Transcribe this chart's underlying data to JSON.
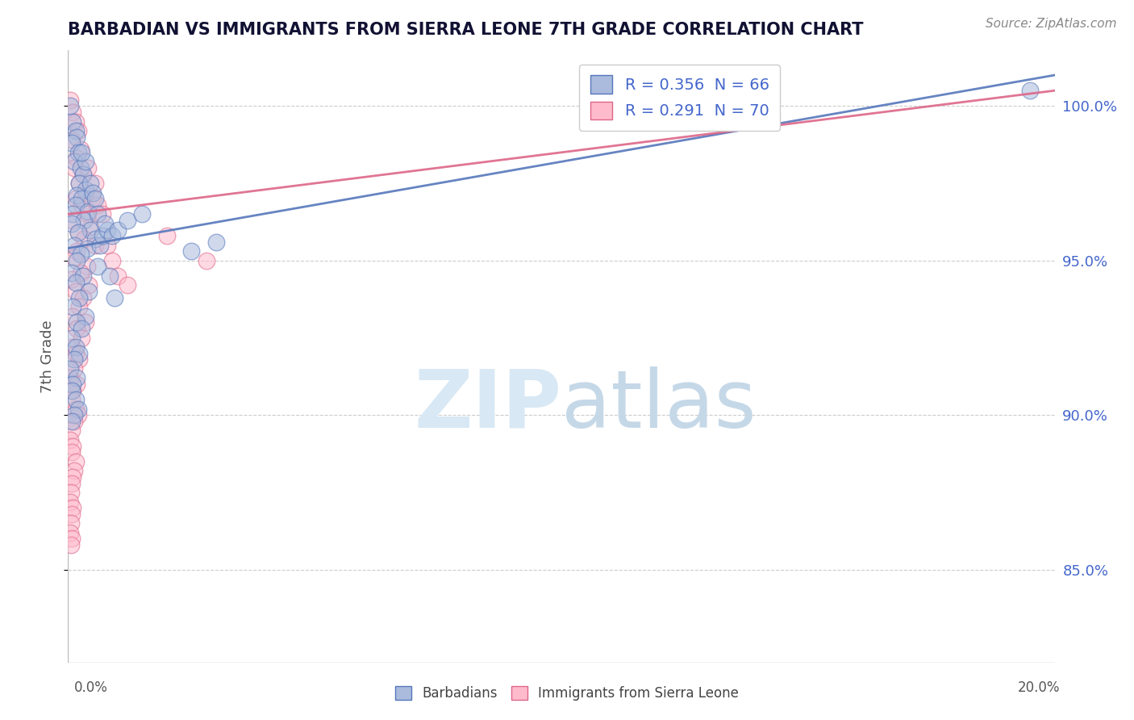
{
  "title": "BARBADIAN VS IMMIGRANTS FROM SIERRA LEONE 7TH GRADE CORRELATION CHART",
  "source": "Source: ZipAtlas.com",
  "ylabel": "7th Grade",
  "xlim": [
    0.0,
    20.0
  ],
  "ylim": [
    82.0,
    101.8
  ],
  "yticks": [
    85.0,
    90.0,
    95.0,
    100.0
  ],
  "ytick_labels": [
    "85.0%",
    "90.0%",
    "95.0%",
    "100.0%"
  ],
  "blue_scatter": [
    [
      0.05,
      100.0
    ],
    [
      0.1,
      99.5
    ],
    [
      0.15,
      99.2
    ],
    [
      0.18,
      99.0
    ],
    [
      0.08,
      98.8
    ],
    [
      0.2,
      98.5
    ],
    [
      0.12,
      98.2
    ],
    [
      0.25,
      98.0
    ],
    [
      0.3,
      97.8
    ],
    [
      0.22,
      97.5
    ],
    [
      0.35,
      97.3
    ],
    [
      0.18,
      97.1
    ],
    [
      0.28,
      97.0
    ],
    [
      0.15,
      96.8
    ],
    [
      0.4,
      96.6
    ],
    [
      0.1,
      96.5
    ],
    [
      0.32,
      96.3
    ],
    [
      0.08,
      96.2
    ],
    [
      0.45,
      96.0
    ],
    [
      0.2,
      95.9
    ],
    [
      0.55,
      95.7
    ],
    [
      0.12,
      95.5
    ],
    [
      0.38,
      95.4
    ],
    [
      0.25,
      95.2
    ],
    [
      0.18,
      95.0
    ],
    [
      0.6,
      94.8
    ],
    [
      0.08,
      94.6
    ],
    [
      0.3,
      94.5
    ],
    [
      0.15,
      94.3
    ],
    [
      0.42,
      94.0
    ],
    [
      0.22,
      93.8
    ],
    [
      0.1,
      93.5
    ],
    [
      0.35,
      93.2
    ],
    [
      0.18,
      93.0
    ],
    [
      0.28,
      92.8
    ],
    [
      0.08,
      92.5
    ],
    [
      0.15,
      92.2
    ],
    [
      0.22,
      92.0
    ],
    [
      0.12,
      91.8
    ],
    [
      0.05,
      91.5
    ],
    [
      0.18,
      91.2
    ],
    [
      0.1,
      91.0
    ],
    [
      0.08,
      90.8
    ],
    [
      0.15,
      90.5
    ],
    [
      0.2,
      90.2
    ],
    [
      0.12,
      90.0
    ],
    [
      0.08,
      89.8
    ],
    [
      0.65,
      95.5
    ],
    [
      0.7,
      95.8
    ],
    [
      0.8,
      96.0
    ],
    [
      2.5,
      95.3
    ],
    [
      3.0,
      95.6
    ],
    [
      19.5,
      100.5
    ],
    [
      0.45,
      97.5
    ],
    [
      0.5,
      97.2
    ],
    [
      0.55,
      97.0
    ],
    [
      0.35,
      98.2
    ],
    [
      0.28,
      98.5
    ],
    [
      0.6,
      96.5
    ],
    [
      0.75,
      96.2
    ],
    [
      0.9,
      95.8
    ],
    [
      1.0,
      96.0
    ],
    [
      1.2,
      96.3
    ],
    [
      1.5,
      96.5
    ],
    [
      0.85,
      94.5
    ],
    [
      0.95,
      93.8
    ]
  ],
  "pink_scatter": [
    [
      0.05,
      100.2
    ],
    [
      0.1,
      99.8
    ],
    [
      0.15,
      99.5
    ],
    [
      0.2,
      99.2
    ],
    [
      0.08,
      98.9
    ],
    [
      0.25,
      98.6
    ],
    [
      0.18,
      98.3
    ],
    [
      0.12,
      98.0
    ],
    [
      0.3,
      97.8
    ],
    [
      0.22,
      97.5
    ],
    [
      0.35,
      97.2
    ],
    [
      0.15,
      97.0
    ],
    [
      0.28,
      96.8
    ],
    [
      0.4,
      96.5
    ],
    [
      0.1,
      96.3
    ],
    [
      0.45,
      96.1
    ],
    [
      0.2,
      95.9
    ],
    [
      0.32,
      95.7
    ],
    [
      0.55,
      95.5
    ],
    [
      0.18,
      95.3
    ],
    [
      0.12,
      95.1
    ],
    [
      0.38,
      94.8
    ],
    [
      0.25,
      94.6
    ],
    [
      0.08,
      94.4
    ],
    [
      0.42,
      94.2
    ],
    [
      0.15,
      94.0
    ],
    [
      0.3,
      93.8
    ],
    [
      0.22,
      93.5
    ],
    [
      0.1,
      93.2
    ],
    [
      0.35,
      93.0
    ],
    [
      0.18,
      92.8
    ],
    [
      0.28,
      92.5
    ],
    [
      0.08,
      92.2
    ],
    [
      0.15,
      92.0
    ],
    [
      0.22,
      91.8
    ],
    [
      0.12,
      91.5
    ],
    [
      0.05,
      91.2
    ],
    [
      0.18,
      91.0
    ],
    [
      0.1,
      90.8
    ],
    [
      0.08,
      90.5
    ],
    [
      0.15,
      90.2
    ],
    [
      0.2,
      90.0
    ],
    [
      0.12,
      89.8
    ],
    [
      0.08,
      89.5
    ],
    [
      0.05,
      89.2
    ],
    [
      0.1,
      89.0
    ],
    [
      0.08,
      88.8
    ],
    [
      0.15,
      88.5
    ],
    [
      0.12,
      88.2
    ],
    [
      0.1,
      88.0
    ],
    [
      0.08,
      87.8
    ],
    [
      0.06,
      87.5
    ],
    [
      0.05,
      87.2
    ],
    [
      0.1,
      87.0
    ],
    [
      0.08,
      86.8
    ],
    [
      0.06,
      86.5
    ],
    [
      0.05,
      86.2
    ],
    [
      0.08,
      86.0
    ],
    [
      0.06,
      85.8
    ],
    [
      0.5,
      97.0
    ],
    [
      0.6,
      96.8
    ],
    [
      0.7,
      96.5
    ],
    [
      2.0,
      95.8
    ],
    [
      2.8,
      95.0
    ],
    [
      0.4,
      98.0
    ],
    [
      0.55,
      97.5
    ],
    [
      0.8,
      95.5
    ],
    [
      0.9,
      95.0
    ],
    [
      1.0,
      94.5
    ],
    [
      1.2,
      94.2
    ]
  ],
  "blue_line": [
    [
      0.0,
      95.4
    ],
    [
      20.0,
      101.0
    ]
  ],
  "pink_line": [
    [
      0.0,
      96.5
    ],
    [
      20.0,
      100.5
    ]
  ],
  "blue_color": "#5577bb",
  "pink_color": "#dd6688",
  "blue_fill": "#aabbdd",
  "pink_fill": "#ffbbcc",
  "legend_blue_label": "R = 0.356  N = 66",
  "legend_pink_label": "R = 0.291  N = 70",
  "legend_blue_text_color": "#4466cc",
  "legend_pink_text_color": "#4466cc",
  "bottom_legend_blue": "Barbadians",
  "bottom_legend_pink": "Immigrants from Sierra Leone",
  "watermark_zip": "ZIP",
  "watermark_atlas": "atlas",
  "watermark_color_zip": "#d8e8f4",
  "watermark_color_atlas": "#c5d8e8",
  "background_color": "#ffffff",
  "grid_color": "#cccccc",
  "title_color": "#111133",
  "source_color": "#888888"
}
